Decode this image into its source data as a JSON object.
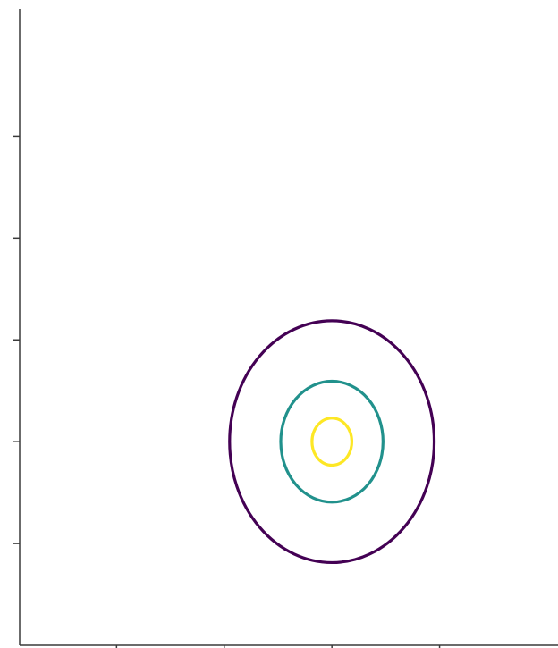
{
  "chart_data": {
    "type": "contour",
    "title": "",
    "xlabel": "",
    "ylabel": "",
    "xlim": [
      0,
      10
    ],
    "ylim": [
      0,
      10
    ],
    "x_ticks": [
      1.8,
      3.8,
      5.8,
      7.8
    ],
    "y_ticks": [
      1.6,
      3.2,
      4.8,
      6.4,
      8.0
    ],
    "grid": false,
    "legend": "none",
    "center": {
      "x": 5.8,
      "y": 3.2
    },
    "levels": [
      {
        "level": 1,
        "radius": 1.9,
        "color": "#440154"
      },
      {
        "level": 2,
        "radius": 0.95,
        "color": "#21918c"
      },
      {
        "level": 3,
        "radius": 0.37,
        "color": "#fde725"
      }
    ]
  }
}
